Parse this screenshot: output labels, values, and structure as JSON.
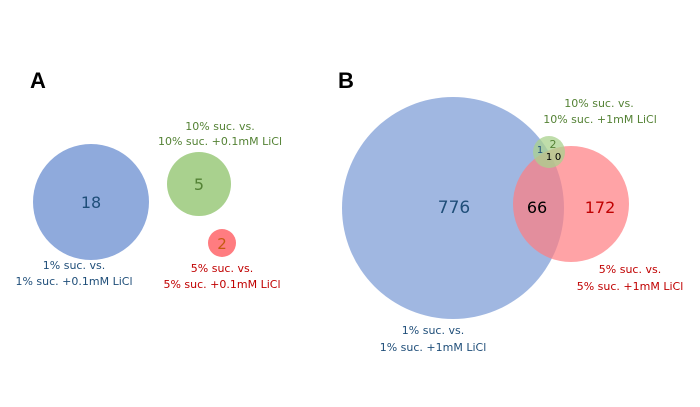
{
  "colors": {
    "blue_fill": "#8faadc",
    "green_fill": "#a9d18e",
    "red_fill": "#ff7c80",
    "blue_text": "#1f4e79",
    "green_text": "#548235",
    "red_text": "#c00000"
  },
  "panel_a": {
    "label": "A",
    "blue": {
      "value": "18",
      "caption_line1": "1% suc. vs.",
      "caption_line2": "1% suc. +0.1mM LiCl"
    },
    "green": {
      "value": "5",
      "caption_line1": "10% suc. vs.",
      "caption_line2": "10% suc. +0.1mM LiCl"
    },
    "red": {
      "value": "2",
      "caption_line1": "5% suc. vs.",
      "caption_line2": "5% suc. +0.1mM LiCl"
    }
  },
  "panel_b": {
    "label": "B",
    "blue_only": "776",
    "blue_red": "66",
    "red_only": "172",
    "blue_green": "1",
    "green_only": "2",
    "blue_green_red": "1",
    "green_red": "0",
    "blue_caption_line1": "1% suc. vs.",
    "blue_caption_line2": "1% suc. +1mM LiCl",
    "green_caption_line1": "10% suc. vs.",
    "green_caption_line2": "10% suc. +1mM LiCl",
    "red_caption_line1": "5% suc. vs.",
    "red_caption_line2": "5% suc. +1mM LiCl"
  }
}
